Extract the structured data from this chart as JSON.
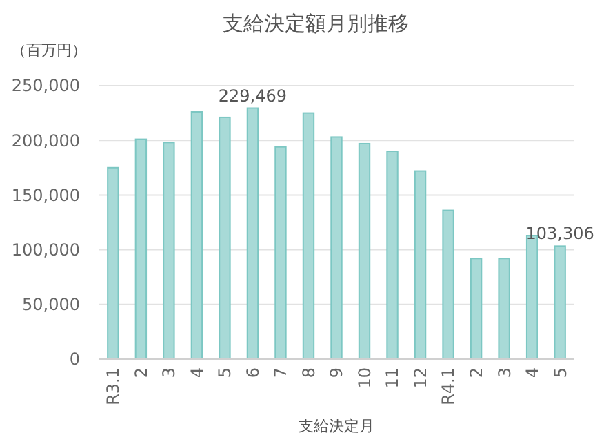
{
  "chart_data": {
    "type": "bar",
    "title": "支給決定額月別推移",
    "ylabel": "（百万円）",
    "xlabel": "支給決定月",
    "categories": [
      "R3.1",
      "2",
      "3",
      "4",
      "5",
      "6",
      "7",
      "8",
      "9",
      "10",
      "11",
      "12",
      "R4.1",
      "2",
      "3",
      "4",
      "5"
    ],
    "values": [
      175000,
      201000,
      198000,
      226000,
      221000,
      229469,
      194000,
      225000,
      203000,
      197000,
      190000,
      172000,
      136000,
      92000,
      92000,
      113000,
      103306
    ],
    "value_labels": [
      null,
      null,
      null,
      null,
      null,
      "229,469",
      null,
      null,
      null,
      null,
      null,
      null,
      null,
      null,
      null,
      null,
      "103,306"
    ],
    "color": "#a8dad7",
    "ylim": [
      0,
      250000
    ],
    "yticks": [
      {
        "value": 0,
        "label": "0"
      },
      {
        "value": 50000,
        "label": "50,000"
      },
      {
        "value": 100000,
        "label": "100,000"
      },
      {
        "value": 150000,
        "label": "150,000"
      },
      {
        "value": 200000,
        "label": "200,000"
      },
      {
        "value": 250000,
        "label": "250,000"
      }
    ],
    "grid": "y"
  }
}
